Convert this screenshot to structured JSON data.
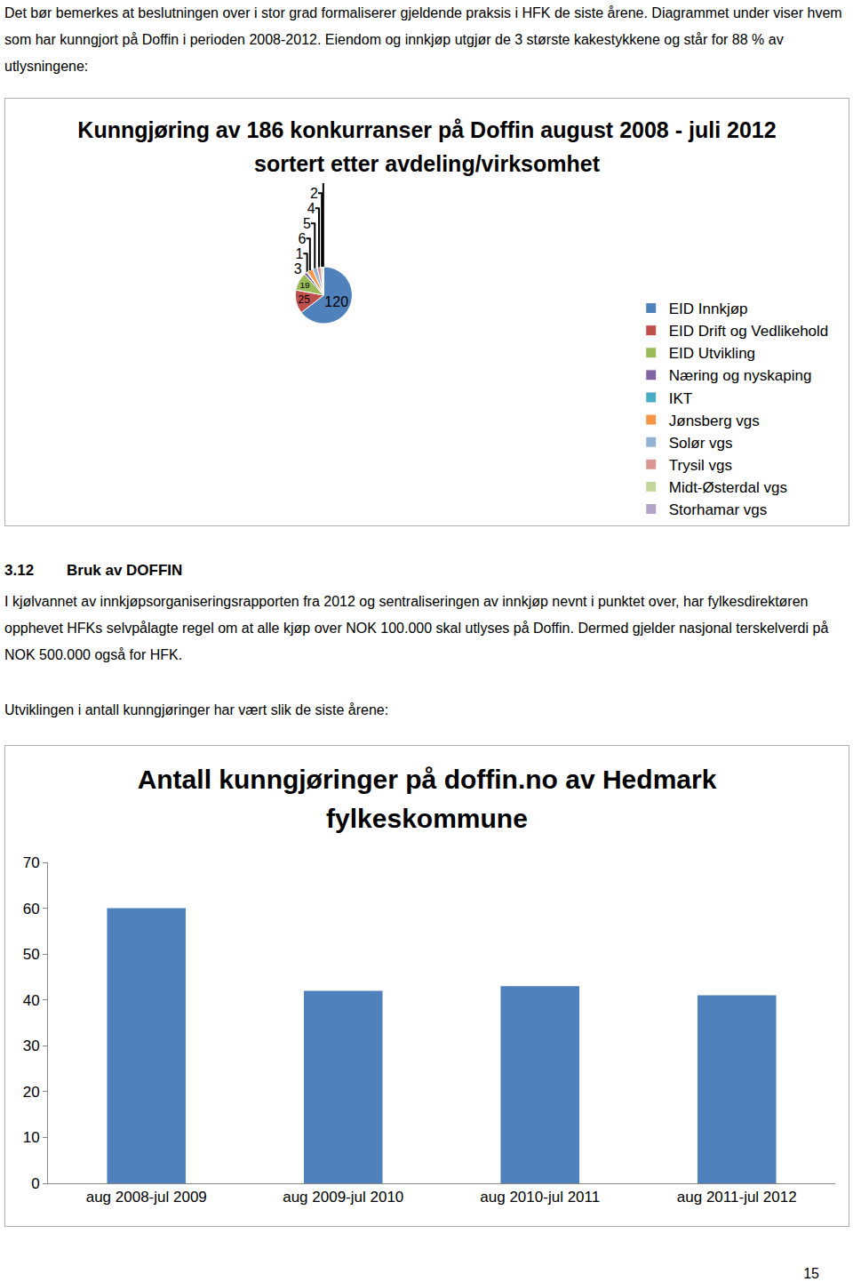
{
  "document": {
    "intro": "Det bør bemerkes at beslutningen over i stor grad formaliserer gjeldende praksis i HFK de siste årene. Diagrammet under viser hvem som har kunngjort på Doffin i perioden 2008-2012. Eiendom og innkjøp utgjør de 3 største kakestykkene og står for 88 % av utlysningene:",
    "section": {
      "number": "3.12",
      "title": "Bruk av DOFFIN"
    },
    "body": "I kjølvannet av innkjøpsorganiseringsrapporten fra 2012 og sentraliseringen av innkjøp nevnt i punktet over, har fylkesdirektøren opphevet HFKs selvpålagte regel om at alle kjøp over NOK 100.000 skal utlyses på Doffin. Dermed gjelder nasjonal terskelverdi på NOK 500.000 også for HFK.",
    "lead_in": "Utviklingen i antall kunngjøringer har vært slik de siste årene:",
    "page_number": "15"
  },
  "chart_data": [
    {
      "type": "pie",
      "title": "Kunngjøring av 186 konkurranser på Doffin august 2008 - juli 2012 sortert etter avdeling/virksomhet",
      "categories": [
        "EID Innkjøp",
        "EID Drift og Vedlikehold",
        "EID Utvikling",
        "Næring og nyskaping",
        "IKT",
        "Jønsberg vgs",
        "Solør vgs",
        "Trysil vgs",
        "Midt-Østerdal vgs",
        "Storhamar vgs"
      ],
      "values": [
        120,
        25,
        19,
        3,
        1,
        6,
        5,
        4,
        2,
        1
      ],
      "colors": [
        "#4F81BD",
        "#C0504D",
        "#9BBB59",
        "#8064A2",
        "#4BACC6",
        "#F79646",
        "#95B3D7",
        "#D99694",
        "#C3D69B",
        "#B3A2C7"
      ],
      "data_labels": true,
      "legend": "right"
    },
    {
      "type": "bar",
      "title": "Antall kunngjøringer på doffin.no av Hedmark fylkeskommune",
      "categories": [
        "aug 2008-jul 2009",
        "aug 2009-jul 2010",
        "aug 2010-jul 2011",
        "aug 2011-jul 2012"
      ],
      "values": [
        60,
        42,
        43,
        41
      ],
      "color": "#4F81BD",
      "ylim": [
        0,
        70
      ],
      "yticks": [
        0,
        10,
        20,
        30,
        40,
        50,
        60,
        70
      ],
      "grid": false
    }
  ]
}
